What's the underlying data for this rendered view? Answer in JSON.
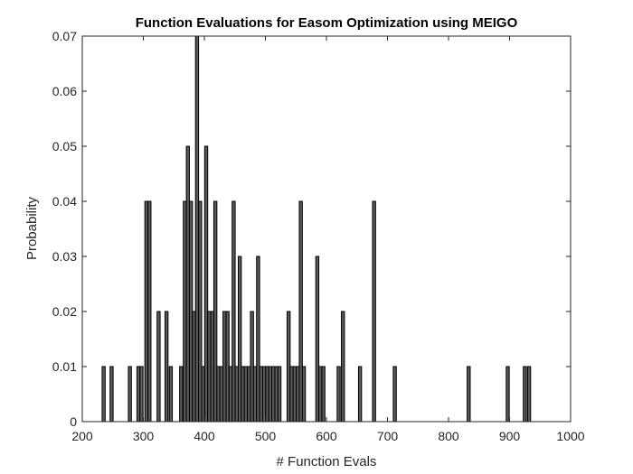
{
  "chart_data": {
    "type": "bar",
    "title": "Function Evaluations for Easom Optimization using MEIGO",
    "xlabel": "# Function Evals",
    "ylabel": "Probability",
    "xlim": [
      200,
      1000
    ],
    "ylim": [
      0,
      0.07
    ],
    "xticks": [
      "200",
      "300",
      "400",
      "500",
      "600",
      "700",
      "800",
      "900",
      "1000"
    ],
    "xtick_values": [
      200,
      300,
      400,
      500,
      600,
      700,
      800,
      900,
      1000
    ],
    "yticks": [
      "0",
      "0.01",
      "0.02",
      "0.03",
      "0.04",
      "0.05",
      "0.06",
      "0.07"
    ],
    "ytick_values": [
      0,
      0.01,
      0.02,
      0.03,
      0.04,
      0.05,
      0.06,
      0.07
    ],
    "bin_width": 5,
    "bar_color": "#5a5a5a",
    "edge_color": "#000000",
    "grid": false,
    "bars": [
      {
        "x": 235,
        "y": 0.01
      },
      {
        "x": 248,
        "y": 0.01
      },
      {
        "x": 278,
        "y": 0.01
      },
      {
        "x": 292,
        "y": 0.01
      },
      {
        "x": 297,
        "y": 0.01
      },
      {
        "x": 305,
        "y": 0.04
      },
      {
        "x": 310,
        "y": 0.04
      },
      {
        "x": 325,
        "y": 0.02
      },
      {
        "x": 338,
        "y": 0.02
      },
      {
        "x": 345,
        "y": 0.01
      },
      {
        "x": 362,
        "y": 0.01
      },
      {
        "x": 368,
        "y": 0.04
      },
      {
        "x": 373,
        "y": 0.05
      },
      {
        "x": 378,
        "y": 0.04
      },
      {
        "x": 383,
        "y": 0.02
      },
      {
        "x": 388,
        "y": 0.07
      },
      {
        "x": 393,
        "y": 0.04
      },
      {
        "x": 398,
        "y": 0.01
      },
      {
        "x": 403,
        "y": 0.05
      },
      {
        "x": 408,
        "y": 0.02
      },
      {
        "x": 413,
        "y": 0.02
      },
      {
        "x": 418,
        "y": 0.04
      },
      {
        "x": 423,
        "y": 0.01
      },
      {
        "x": 428,
        "y": 0.01
      },
      {
        "x": 433,
        "y": 0.02
      },
      {
        "x": 438,
        "y": 0.02
      },
      {
        "x": 443,
        "y": 0.01
      },
      {
        "x": 448,
        "y": 0.04
      },
      {
        "x": 453,
        "y": 0.01
      },
      {
        "x": 458,
        "y": 0.03
      },
      {
        "x": 463,
        "y": 0.01
      },
      {
        "x": 468,
        "y": 0.01
      },
      {
        "x": 473,
        "y": 0.01
      },
      {
        "x": 478,
        "y": 0.02
      },
      {
        "x": 483,
        "y": 0.01
      },
      {
        "x": 488,
        "y": 0.03
      },
      {
        "x": 493,
        "y": 0.01
      },
      {
        "x": 498,
        "y": 0.01
      },
      {
        "x": 503,
        "y": 0.01
      },
      {
        "x": 508,
        "y": 0.01
      },
      {
        "x": 513,
        "y": 0.01
      },
      {
        "x": 518,
        "y": 0.01
      },
      {
        "x": 523,
        "y": 0.01
      },
      {
        "x": 538,
        "y": 0.02
      },
      {
        "x": 543,
        "y": 0.01
      },
      {
        "x": 548,
        "y": 0.01
      },
      {
        "x": 553,
        "y": 0.01
      },
      {
        "x": 558,
        "y": 0.04
      },
      {
        "x": 563,
        "y": 0.01
      },
      {
        "x": 585,
        "y": 0.03
      },
      {
        "x": 590,
        "y": 0.01
      },
      {
        "x": 595,
        "y": 0.01
      },
      {
        "x": 620,
        "y": 0.01
      },
      {
        "x": 627,
        "y": 0.02
      },
      {
        "x": 655,
        "y": 0.01
      },
      {
        "x": 678,
        "y": 0.04
      },
      {
        "x": 712,
        "y": 0.01
      },
      {
        "x": 833,
        "y": 0.01
      },
      {
        "x": 897,
        "y": 0.01
      },
      {
        "x": 925,
        "y": 0.01
      },
      {
        "x": 932,
        "y": 0.01
      }
    ]
  }
}
